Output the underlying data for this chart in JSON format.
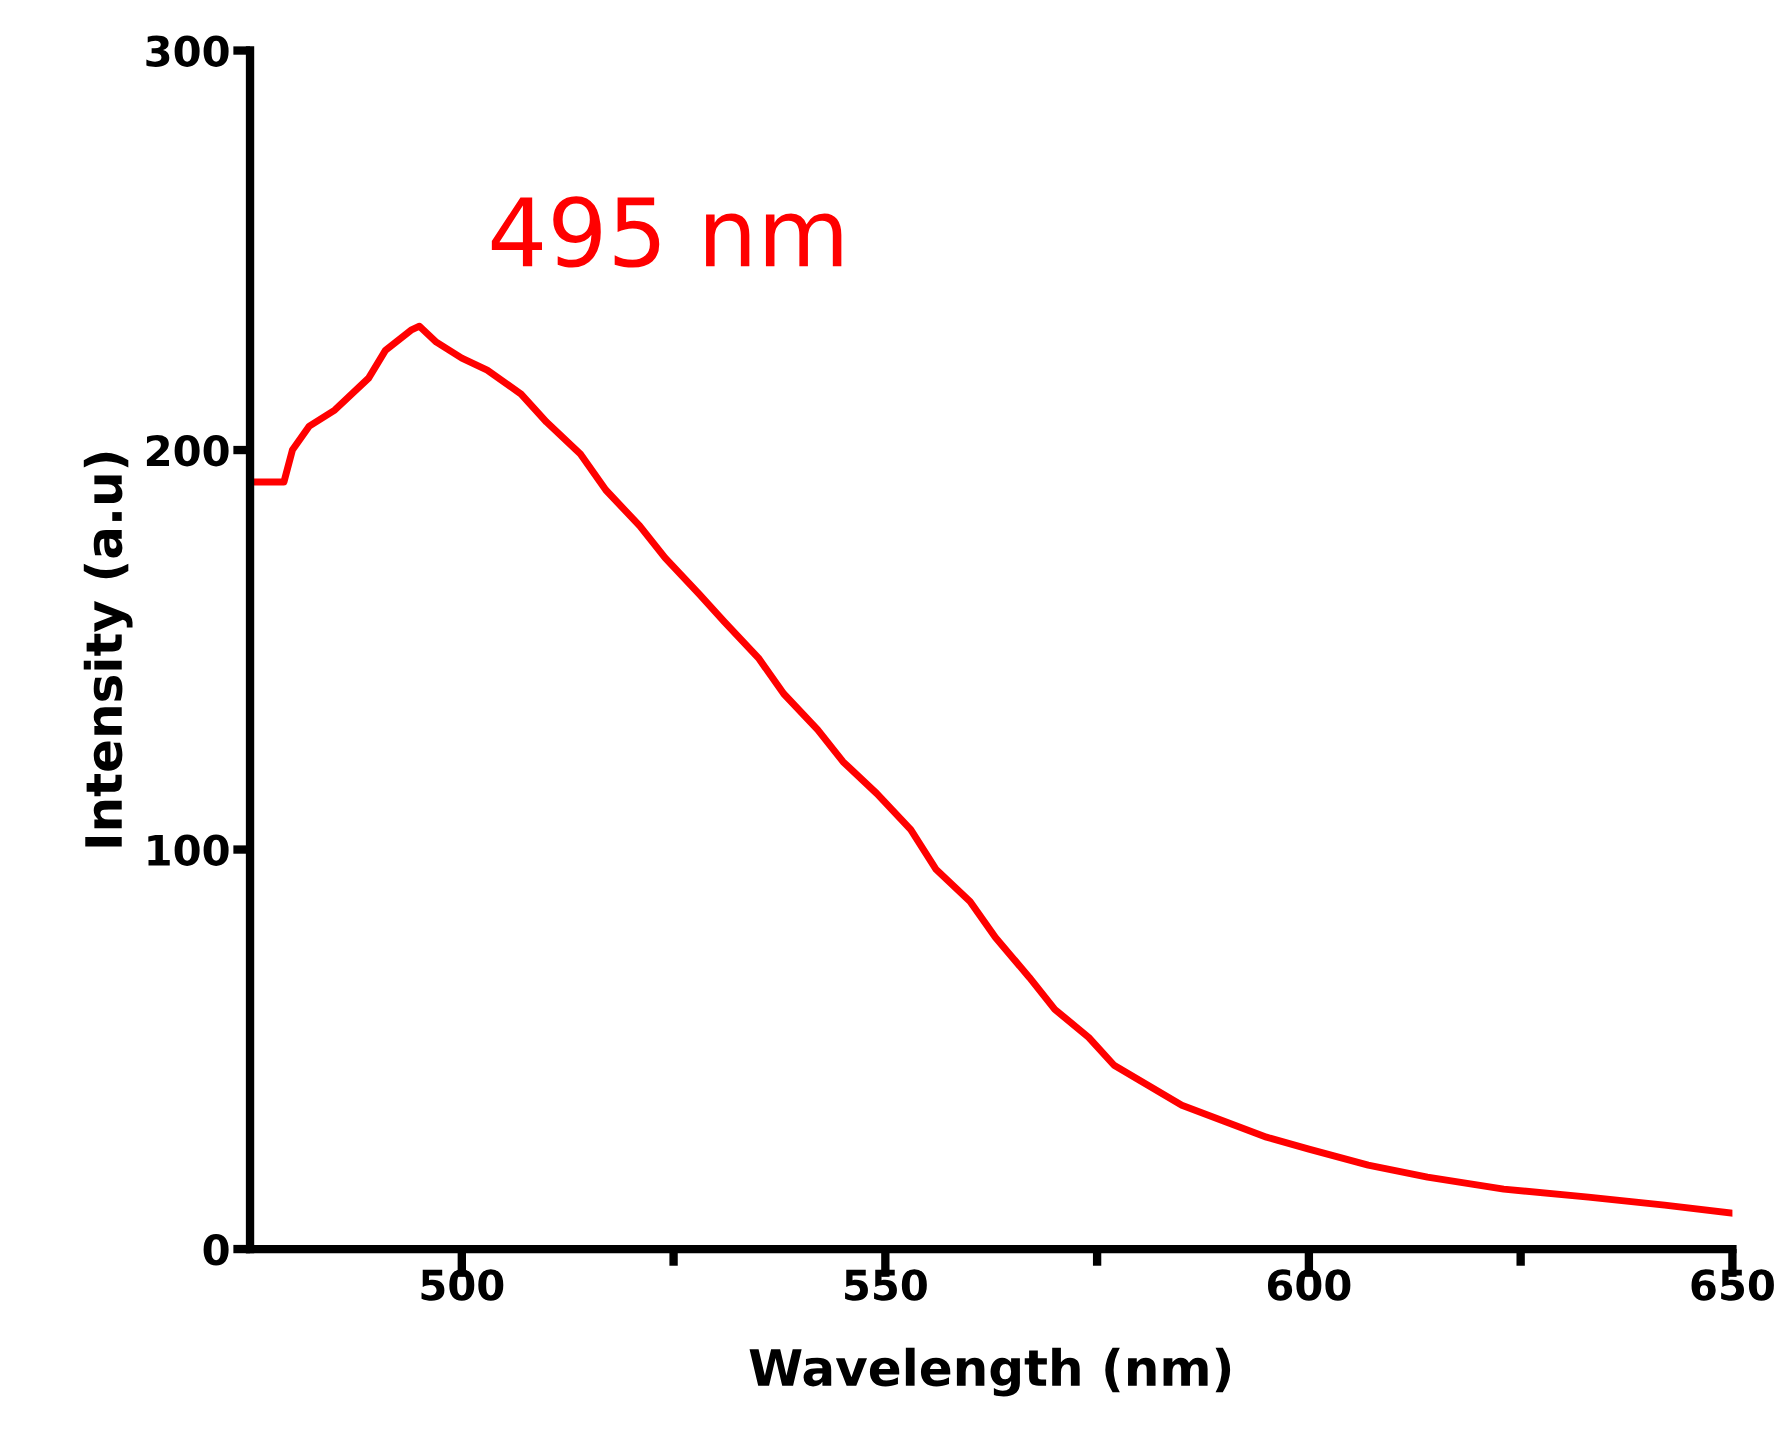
{
  "chart_data": {
    "type": "line",
    "xlabel": "Wavelength (nm)",
    "ylabel": "Intensity (a.u)",
    "annotations": [
      "495 nm"
    ],
    "xlim": [
      475,
      650
    ],
    "ylim": [
      0,
      300
    ],
    "xticks": [
      500,
      {
        "value": 525,
        "label": null
      },
      550,
      {
        "value": 575,
        "label": null
      },
      600,
      {
        "value": 625,
        "label": null
      },
      650
    ],
    "yticks": [
      0,
      100,
      200,
      300
    ],
    "grid": false,
    "legend": false,
    "marker": "none",
    "line_style": "solid",
    "series": [
      {
        "color": "#ff0000",
        "x": [
          475,
          479,
          480,
          482,
          485,
          489,
          491,
          494,
          495,
          497,
          500,
          503,
          507,
          510,
          514,
          517,
          521,
          524,
          528,
          531,
          535,
          538,
          542,
          545,
          549,
          553,
          556,
          560,
          563,
          567,
          570,
          574,
          577,
          581,
          585,
          590,
          595,
          600,
          607,
          614,
          623,
          633,
          642,
          650
        ],
        "values": [
          192,
          192,
          200,
          206,
          210,
          218,
          225,
          230,
          231,
          227,
          223,
          220,
          214,
          207,
          199,
          190,
          181,
          173,
          164,
          157,
          148,
          139,
          130,
          122,
          114,
          105,
          95,
          87,
          78,
          68,
          60,
          53,
          46,
          41,
          36,
          32,
          28,
          25,
          21,
          18,
          15,
          13,
          11,
          9
        ]
      }
    ]
  }
}
